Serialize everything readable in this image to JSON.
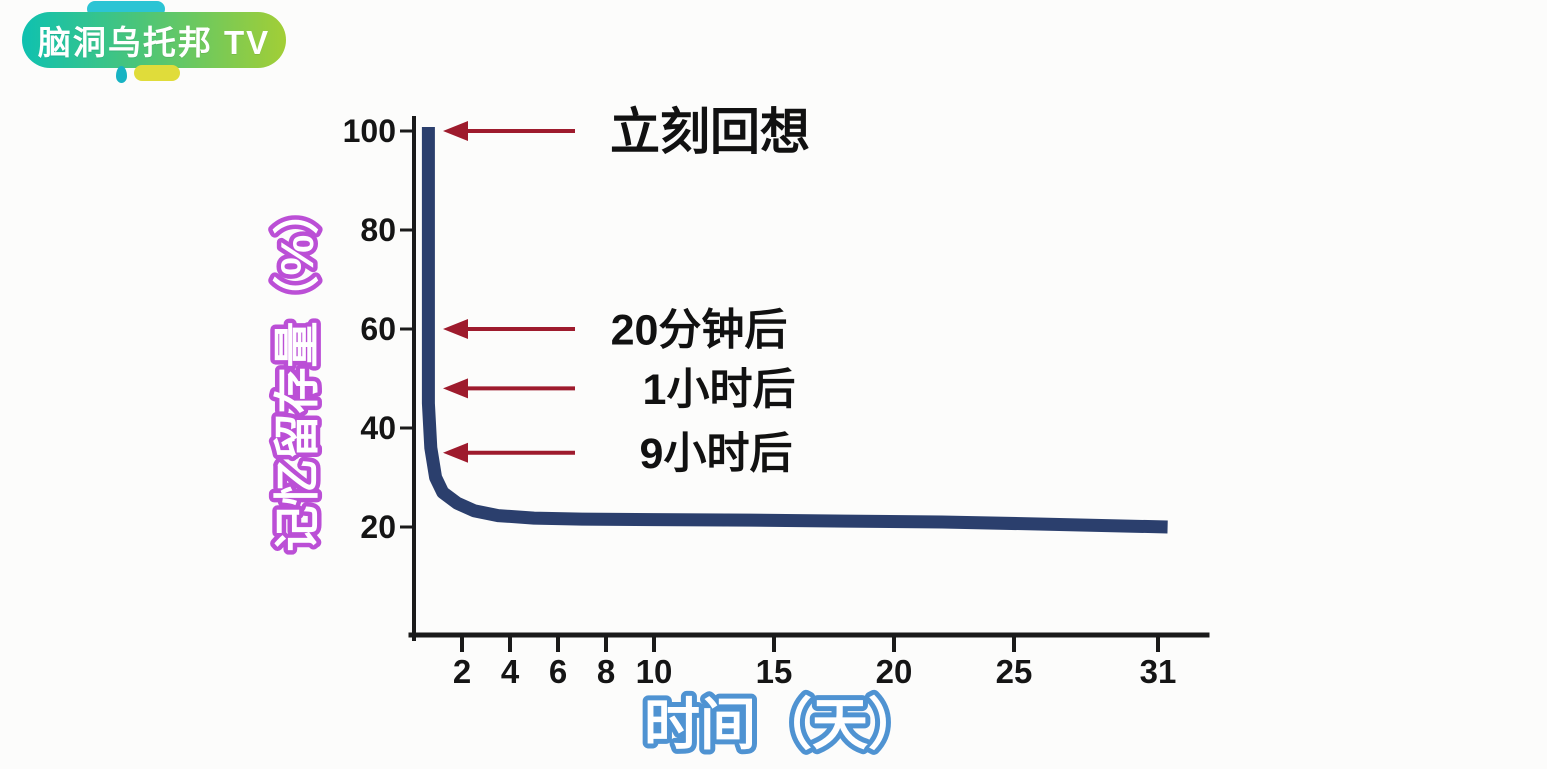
{
  "logo": {
    "text": "脑洞乌托邦 TV",
    "colors": {
      "pill_gradient_left": "#0fc1b0",
      "pill_gradient_right": "#a2ce36",
      "top_tab": "#2cc4d4",
      "bottom_tab": "#e0dc3a",
      "drop": "#17b3c3",
      "text": "#ffffff"
    }
  },
  "chart_data": {
    "type": "line",
    "title": "",
    "xlabel": "时间（天）",
    "ylabel": "记忆留存量（%）",
    "xlim": [
      0,
      33
    ],
    "ylim": [
      0,
      100
    ],
    "grid": false,
    "x_ticks": [
      2,
      4,
      6,
      8,
      10,
      15,
      20,
      25,
      31
    ],
    "y_ticks": [
      100,
      80,
      60,
      40,
      20
    ],
    "series": [
      {
        "name": "memory-retention-curve",
        "points": [
          [
            0.6,
            100.8
          ],
          [
            0.6,
            70
          ],
          [
            0.6,
            45
          ],
          [
            0.7,
            36
          ],
          [
            0.9,
            30
          ],
          [
            1.2,
            27
          ],
          [
            1.8,
            24.8
          ],
          [
            2.5,
            23.3
          ],
          [
            3.5,
            22.3
          ],
          [
            5,
            21.8
          ],
          [
            7,
            21.6
          ],
          [
            10,
            21.5
          ],
          [
            14,
            21.4
          ],
          [
            18,
            21.2
          ],
          [
            22,
            21.0
          ],
          [
            26,
            20.6
          ],
          [
            31.4,
            20.0
          ]
        ]
      }
    ],
    "annotations": [
      {
        "label": "立刻回想",
        "value_pct": 100
      },
      {
        "label": "20分钟后",
        "value_pct": 60
      },
      {
        "label": "1小时后",
        "value_pct": 48
      },
      {
        "label": "9小时后",
        "value_pct": 35
      }
    ],
    "colors": {
      "curve": "#2b3f6d",
      "arrow": "#9e1b2d",
      "axis": "#1a1a1a",
      "tick_text": "#151515",
      "annotation_text": "#111111",
      "y_label_outline": "#bb4fd6",
      "x_label_outline": "#4f93d2",
      "label_fill": "#ffffff"
    }
  }
}
